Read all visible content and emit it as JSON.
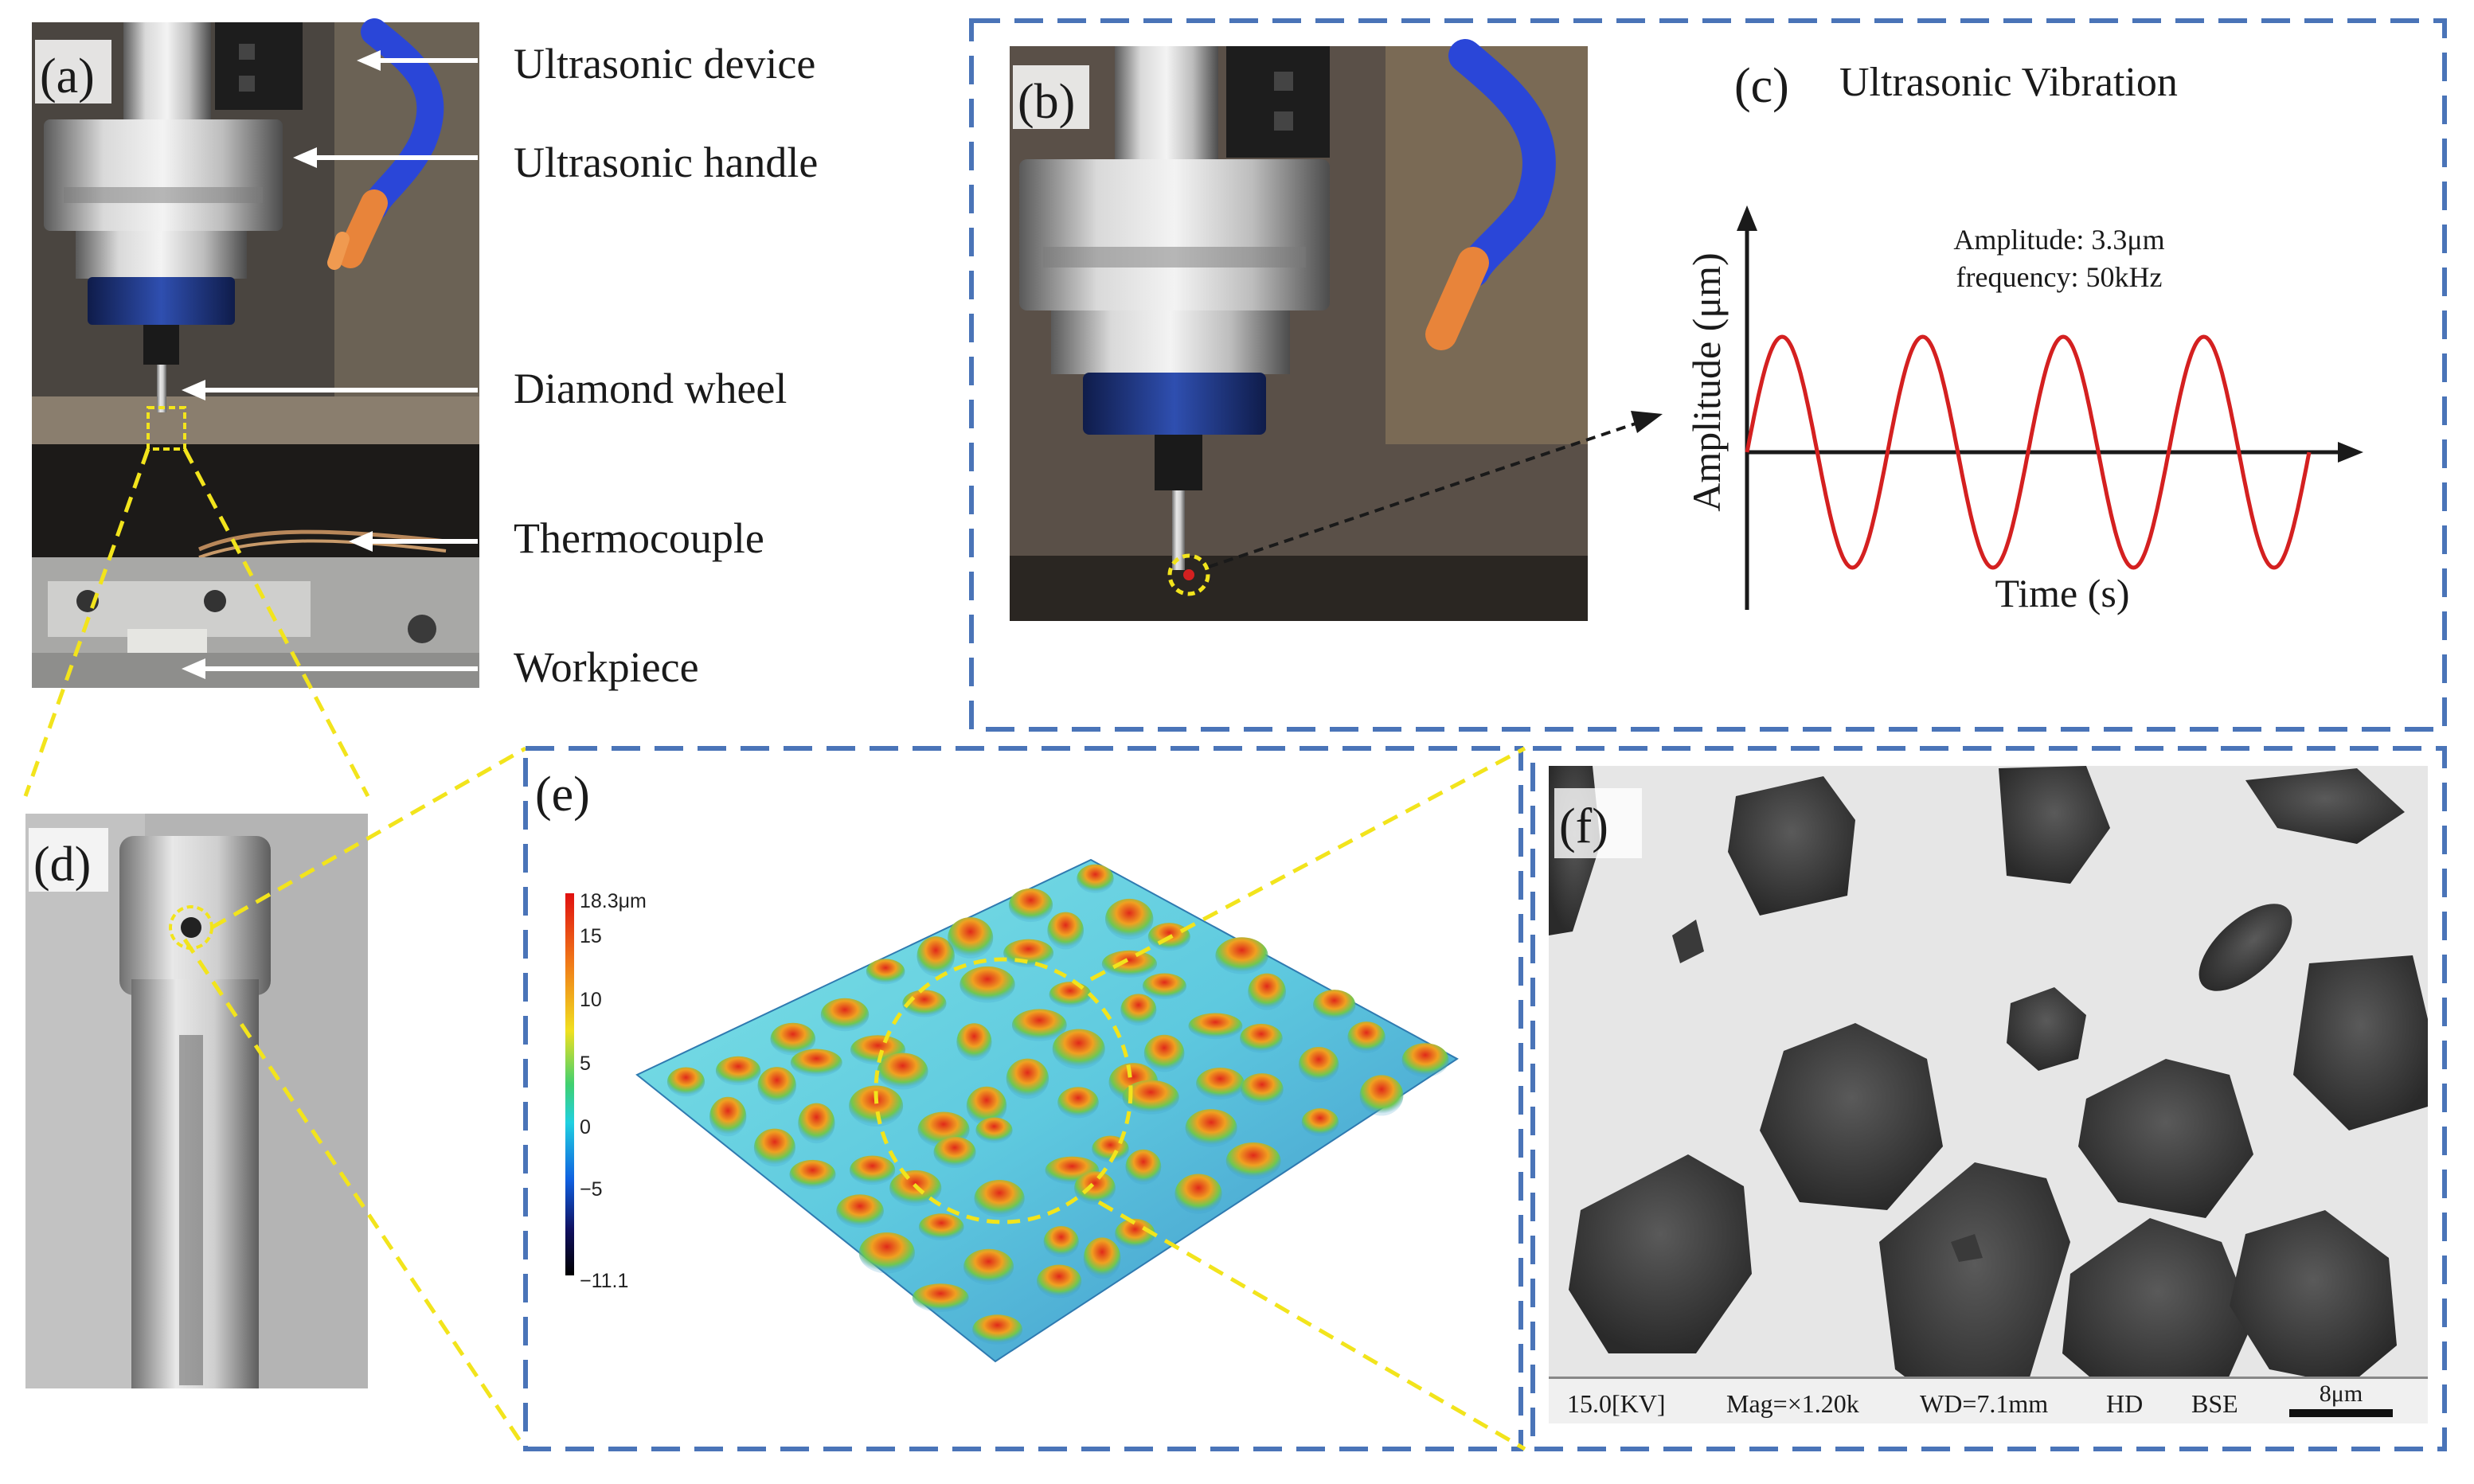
{
  "panels": {
    "a": "(a)",
    "b": "(b)",
    "c": "(c)",
    "d": "(d)",
    "e": "(e)",
    "f": "(f)"
  },
  "callouts": {
    "ultrasonic_device": "Ultrasonic device",
    "ultrasonic_handle": "Ultrasonic handle",
    "diamond_wheel": "Diamond wheel",
    "thermocouple": "Thermocouple",
    "workpiece": "Workpiece"
  },
  "vibration": {
    "title": "Ultrasonic Vibration",
    "amplitude_text": "Amplitude: 3.3μm",
    "frequency_text": "frequency: 50kHz",
    "y_label": "Amplitude (μm)",
    "x_label": "Time (s)",
    "cycles": 4,
    "wave_color": "#d42020"
  },
  "colorbar": {
    "max_label": "18.3μm",
    "ticks": [
      "15",
      "10",
      "5",
      "0",
      "−5"
    ],
    "min_label": "−11.1"
  },
  "sem": {
    "voltage": "15.0[KV]",
    "magnification": "Mag=×1.20k",
    "working_distance": "WD=7.1mm",
    "mode_hd": "HD",
    "mode_bse": "BSE",
    "scale_bar": "8μm"
  },
  "colors": {
    "dash_box": "#4a74b8",
    "highlight": "#f2e41c"
  }
}
